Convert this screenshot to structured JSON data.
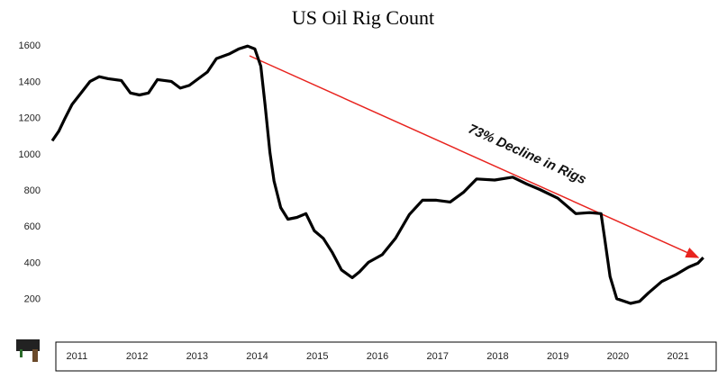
{
  "chart_data": {
    "type": "line",
    "title": "US Oil Rig Count",
    "annotation": "73% Decline in Rigs",
    "x": [
      2011.09,
      2011.2,
      2011.3,
      2011.42,
      2011.57,
      2011.72,
      2011.87,
      2012.02,
      2012.24,
      2012.39,
      2012.54,
      2012.69,
      2012.84,
      2013.07,
      2013.22,
      2013.37,
      2013.52,
      2013.67,
      2013.82,
      2014.04,
      2014.19,
      2014.34,
      2014.46,
      2014.56,
      2014.63,
      2014.71,
      2014.78,
      2014.89,
      2015.01,
      2015.16,
      2015.31,
      2015.45,
      2015.6,
      2015.75,
      2015.9,
      2016.08,
      2016.2,
      2016.35,
      2016.58,
      2016.8,
      2017.03,
      2017.25,
      2017.48,
      2017.71,
      2017.93,
      2018.15,
      2018.45,
      2018.75,
      2018.98,
      2019.2,
      2019.5,
      2019.8,
      2020.03,
      2020.22,
      2020.28,
      2020.37,
      2020.48,
      2020.71,
      2020.86,
      2021.01,
      2021.23,
      2021.46,
      2021.68,
      2021.83,
      2021.92
    ],
    "series": [
      {
        "name": "US Oil Rig Count",
        "color": "#000000",
        "values": [
          1077,
          1130,
          1200,
          1278,
          1341,
          1405,
          1431,
          1420,
          1410,
          1341,
          1330,
          1341,
          1415,
          1405,
          1368,
          1383,
          1420,
          1457,
          1531,
          1558,
          1584,
          1600,
          1584,
          1489,
          1278,
          1014,
          855,
          708,
          644,
          654,
          675,
          580,
          538,
          459,
          364,
          321,
          353,
          406,
          448,
          538,
          670,
          749,
          749,
          739,
          792,
          866,
          860,
          876,
          839,
          808,
          760,
          675,
          680,
          675,
          538,
          327,
          205,
          179,
          190,
          237,
          300,
          337,
          380,
          401,
          432
        ]
      }
    ],
    "xlim": [
      2011,
      2022
    ],
    "xticks": [
      {
        "value": 2011.5,
        "label": "2011"
      },
      {
        "value": 2012.5,
        "label": "2012"
      },
      {
        "value": 2013.5,
        "label": "2013"
      },
      {
        "value": 2014.5,
        "label": "2014"
      },
      {
        "value": 2015.5,
        "label": "2015"
      },
      {
        "value": 2016.5,
        "label": "2016"
      },
      {
        "value": 2017.5,
        "label": "2017"
      },
      {
        "value": 2018.5,
        "label": "2018"
      },
      {
        "value": 2019.5,
        "label": "2019"
      },
      {
        "value": 2020.5,
        "label": "2020"
      },
      {
        "value": 2021.5,
        "label": "2021"
      }
    ],
    "ylim": [
      100,
      1700
    ],
    "yticks": [
      200,
      400,
      600,
      800,
      1000,
      1200,
      1400,
      1600
    ],
    "grid": false
  }
}
